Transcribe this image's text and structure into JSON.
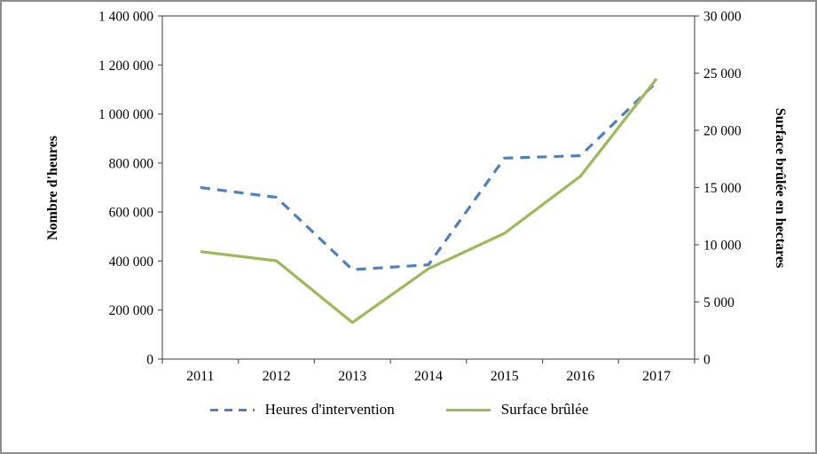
{
  "frame": {
    "background": "#ffffff",
    "border_color": "#8c8c8c"
  },
  "chart_data": {
    "type": "line",
    "categories": [
      "2011",
      "2012",
      "2013",
      "2014",
      "2015",
      "2016",
      "2017"
    ],
    "series": [
      {
        "name": "Heures d'intervention",
        "axis": "left",
        "color": "#4F81BD",
        "style": "dashed",
        "values": [
          700000,
          660000,
          365000,
          385000,
          820000,
          830000,
          1130000
        ]
      },
      {
        "name": "Surface brûlée",
        "axis": "right",
        "color": "#9BBB59",
        "style": "solid",
        "values": [
          9400,
          8600,
          3200,
          7900,
          11000,
          16000,
          24500
        ]
      }
    ],
    "left_axis": {
      "label": "Nombre d'heures",
      "min": 0,
      "max": 1400000,
      "step": 200000
    },
    "right_axis": {
      "label": "Surface brûlée en hectares",
      "min": 0,
      "max": 30000,
      "step": 5000
    },
    "grid": false,
    "legend_position": "bottom",
    "axis_line_color": "#595959",
    "text_color": "#000000"
  }
}
